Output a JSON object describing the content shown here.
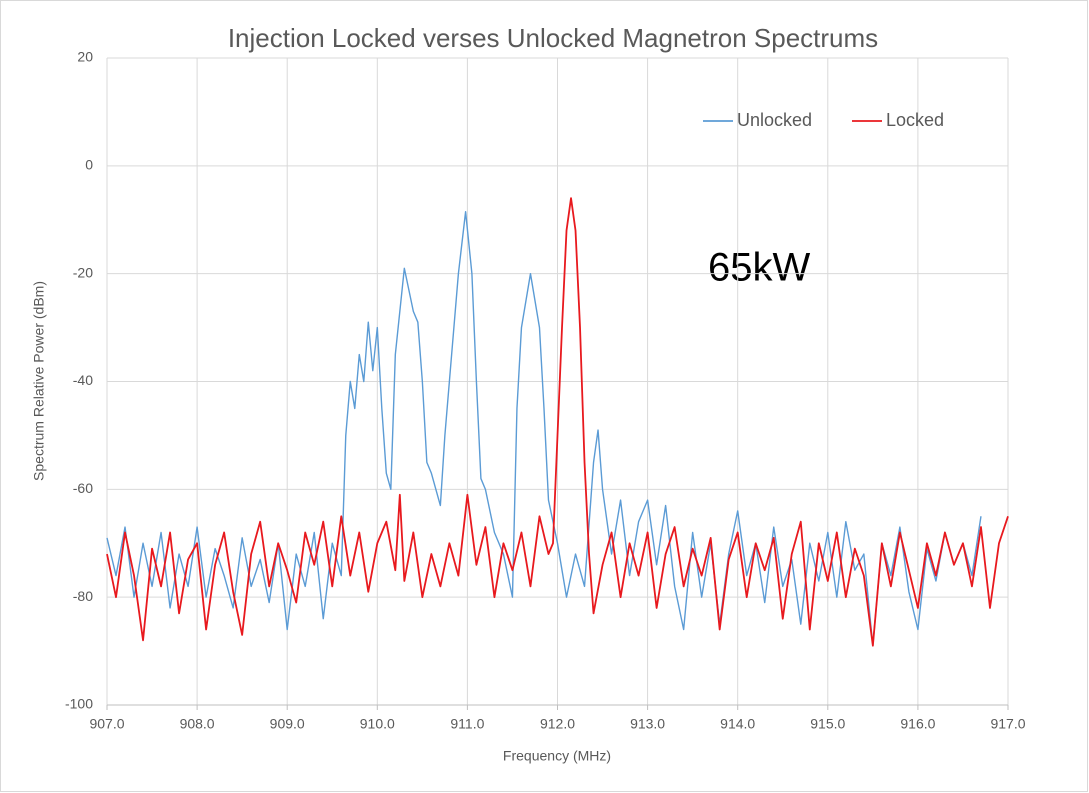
{
  "chart_data": {
    "type": "line",
    "title": "Injection Locked verses Unlocked Magnetron Spectrums",
    "xlabel": "Frequency (MHz)",
    "ylabel": "Spectrum Relative Power (dBm)",
    "annotation": "65kW",
    "xlim": [
      907,
      917
    ],
    "ylim": [
      -100,
      20
    ],
    "xticks": [
      {
        "value": 907,
        "label": "907.0"
      },
      {
        "value": 908,
        "label": "908.0"
      },
      {
        "value": 909,
        "label": "909.0"
      },
      {
        "value": 910,
        "label": "910.0"
      },
      {
        "value": 911,
        "label": "911.0"
      },
      {
        "value": 912,
        "label": "912.0"
      },
      {
        "value": 913,
        "label": "913.0"
      },
      {
        "value": 914,
        "label": "914.0"
      },
      {
        "value": 915,
        "label": "915.0"
      },
      {
        "value": 916,
        "label": "916.0"
      },
      {
        "value": 917,
        "label": "917.0"
      }
    ],
    "yticks": [
      -100,
      -80,
      -60,
      -40,
      -20,
      0,
      20
    ],
    "grid": true,
    "legend": "top-right",
    "series": [
      {
        "name": "Unlocked",
        "color": "#5b9bd5",
        "x": [
          907.0,
          907.1,
          907.2,
          907.3,
          907.4,
          907.5,
          907.6,
          907.7,
          907.8,
          907.9,
          908.0,
          908.1,
          908.2,
          908.3,
          908.4,
          908.5,
          908.6,
          908.7,
          908.8,
          908.9,
          909.0,
          909.1,
          909.2,
          909.3,
          909.4,
          909.5,
          909.6,
          909.65,
          909.7,
          909.75,
          909.8,
          909.85,
          909.9,
          909.95,
          910.0,
          910.05,
          910.1,
          910.15,
          910.2,
          910.3,
          910.4,
          910.45,
          910.5,
          910.55,
          910.6,
          910.7,
          910.75,
          910.8,
          910.9,
          910.98,
          911.05,
          911.1,
          911.15,
          911.2,
          911.3,
          911.4,
          911.5,
          911.55,
          911.6,
          911.7,
          911.8,
          911.85,
          911.9,
          912.0,
          912.1,
          912.2,
          912.3,
          912.4,
          912.45,
          912.5,
          912.6,
          912.7,
          912.8,
          912.9,
          913.0,
          913.1,
          913.2,
          913.3,
          913.4,
          913.5,
          913.6,
          913.7,
          913.8,
          913.9,
          914.0,
          914.1,
          914.2,
          914.3,
          914.4,
          914.5,
          914.6,
          914.7,
          914.8,
          914.9,
          915.0,
          915.1,
          915.2,
          915.3,
          915.4,
          915.5,
          915.6,
          915.7,
          915.8,
          915.9,
          916.0,
          916.1,
          916.2,
          916.3,
          916.4,
          916.5,
          916.6,
          916.7
        ],
        "values": [
          -69,
          -76,
          -67,
          -80,
          -70,
          -78,
          -68,
          -82,
          -72,
          -78,
          -67,
          -80,
          -71,
          -76,
          -82,
          -69,
          -78,
          -73,
          -81,
          -70,
          -86,
          -72,
          -78,
          -68,
          -84,
          -70,
          -76,
          -50,
          -40,
          -45,
          -35,
          -40,
          -29,
          -38,
          -30,
          -45,
          -57,
          -60,
          -35,
          -19,
          -27,
          -29,
          -40,
          -55,
          -57,
          -63,
          -50,
          -40,
          -20,
          -8.5,
          -20,
          -40,
          -58,
          -60,
          -68,
          -72,
          -80,
          -45,
          -30,
          -20,
          -30,
          -45,
          -62,
          -70,
          -80,
          -72,
          -78,
          -55,
          -49,
          -60,
          -72,
          -62,
          -76,
          -66,
          -62,
          -74,
          -63,
          -78,
          -86,
          -68,
          -80,
          -70,
          -85,
          -72,
          -64,
          -76,
          -70,
          -81,
          -67,
          -78,
          -73,
          -85,
          -70,
          -77,
          -68,
          -80,
          -66,
          -75,
          -72,
          -89,
          -70,
          -76,
          -67,
          -79,
          -86,
          -71,
          -77,
          -68,
          -74,
          -70,
          -76,
          -65
        ]
      },
      {
        "name": "Locked",
        "color": "#e8191e",
        "x": [
          907.0,
          907.1,
          907.2,
          907.3,
          907.4,
          907.5,
          907.6,
          907.7,
          907.8,
          907.9,
          908.0,
          908.1,
          908.2,
          908.3,
          908.4,
          908.5,
          908.6,
          908.7,
          908.8,
          908.9,
          909.0,
          909.1,
          909.2,
          909.3,
          909.4,
          909.5,
          909.6,
          909.7,
          909.8,
          909.9,
          910.0,
          910.1,
          910.2,
          910.25,
          910.3,
          910.4,
          910.5,
          910.6,
          910.7,
          910.8,
          910.9,
          911.0,
          911.1,
          911.2,
          911.3,
          911.4,
          911.5,
          911.6,
          911.7,
          911.8,
          911.9,
          911.95,
          912.0,
          912.05,
          912.1,
          912.15,
          912.2,
          912.25,
          912.3,
          912.35,
          912.4,
          912.5,
          912.6,
          912.7,
          912.8,
          912.9,
          913.0,
          913.1,
          913.2,
          913.3,
          913.4,
          913.5,
          913.6,
          913.7,
          913.8,
          913.9,
          914.0,
          914.1,
          914.2,
          914.3,
          914.4,
          914.5,
          914.6,
          914.7,
          914.8,
          914.9,
          915.0,
          915.1,
          915.2,
          915.3,
          915.4,
          915.5,
          915.6,
          915.7,
          915.8,
          915.9,
          916.0,
          916.1,
          916.2,
          916.3,
          916.4,
          916.5,
          916.6,
          916.7,
          916.8,
          916.9,
          917.0
        ],
        "values": [
          -72,
          -80,
          -68,
          -76,
          -88,
          -71,
          -78,
          -68,
          -83,
          -73,
          -70,
          -86,
          -74,
          -68,
          -79,
          -87,
          -72,
          -66,
          -78,
          -70,
          -75,
          -81,
          -68,
          -74,
          -66,
          -78,
          -65,
          -76,
          -68,
          -79,
          -70,
          -66,
          -75,
          -61,
          -77,
          -68,
          -80,
          -72,
          -78,
          -70,
          -76,
          -61,
          -74,
          -67,
          -80,
          -70,
          -75,
          -68,
          -78,
          -65,
          -72,
          -70,
          -50,
          -30,
          -12,
          -6,
          -12,
          -30,
          -55,
          -72,
          -83,
          -74,
          -68,
          -80,
          -70,
          -76,
          -68,
          -82,
          -72,
          -67,
          -78,
          -71,
          -76,
          -69,
          -86,
          -73,
          -68,
          -80,
          -70,
          -75,
          -69,
          -84,
          -72,
          -66,
          -86,
          -70,
          -77,
          -68,
          -80,
          -71,
          -76,
          -89,
          -70,
          -78,
          -68,
          -75,
          -82,
          -70,
          -76,
          -68,
          -74,
          -70,
          -78,
          -67,
          -82,
          -70,
          -65
        ]
      }
    ]
  }
}
